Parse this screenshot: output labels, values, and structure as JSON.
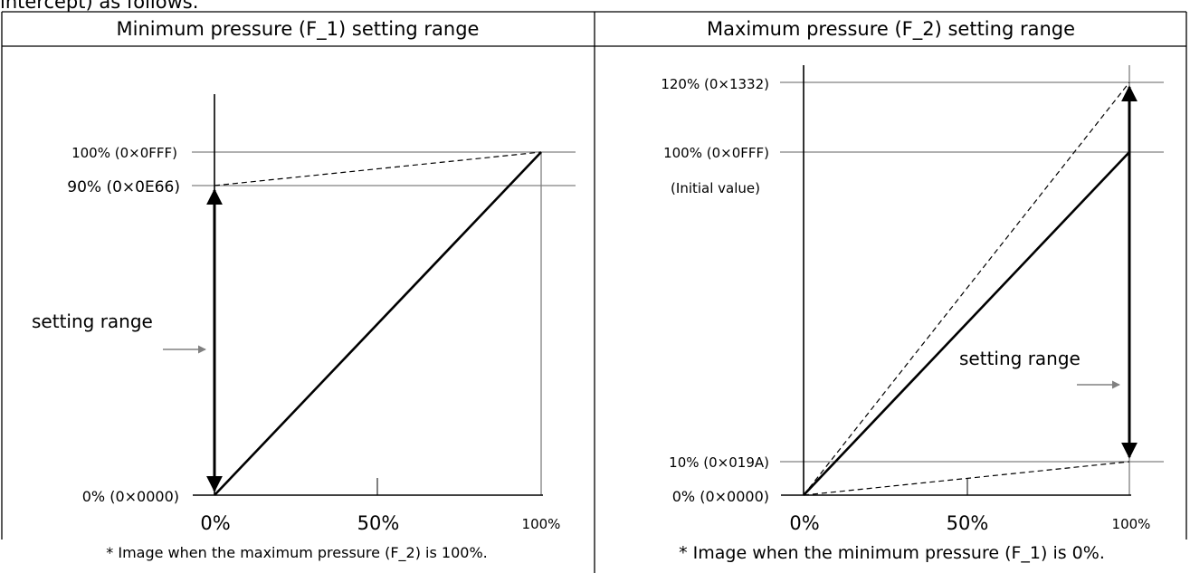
{
  "top_text": "intercept) as follows.",
  "left_panel": {
    "header": "Minimum pressure (F_1) setting range",
    "y_labels": [
      "100% (0×0FFF)",
      "90% (0×0E66)",
      "0% (0×0000)"
    ],
    "x_labels": [
      "0%",
      "50%",
      "100%"
    ],
    "range_label": "setting range",
    "footnote": "* Image when the maximum pressure (F_2) is 100%."
  },
  "right_panel": {
    "header": "Maximum pressure (F_2) setting range",
    "y_labels": [
      "120% (0×1332)",
      "100% (0×0FFF)",
      "(Initial value)",
      "10% (0×019A)",
      "0% (0×0000)"
    ],
    "x_labels": [
      "0%",
      "50%",
      "100%"
    ],
    "range_label": "setting range",
    "footnote": "* Image when the minimum pressure (F_1) is 0%."
  },
  "colors": {
    "border": "#000000",
    "reference_line": "#808080",
    "plot_line": "#000000",
    "pointer_arrow": "#808080"
  }
}
